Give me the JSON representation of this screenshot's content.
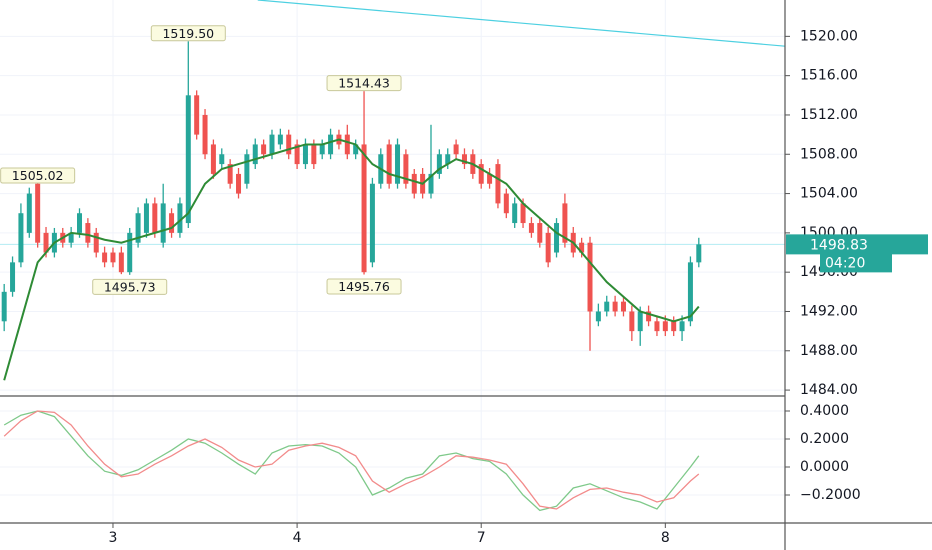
{
  "chart_data": [
    {
      "type": "candlestick",
      "colors": {
        "up": "#26a69a",
        "down": "#ef5350"
      },
      "open": [
        1491,
        1494,
        1497,
        1500,
        1505,
        1500,
        1498,
        1500,
        1499,
        1500,
        1501,
        1500,
        1498,
        1498,
        1498,
        1496,
        1499,
        1500,
        1503,
        1499,
        1502,
        1500,
        1501,
        1514,
        1512,
        1509,
        1507,
        1507,
        1506,
        1505,
        1507,
        1509,
        1508,
        1509,
        1510,
        1509,
        1507,
        1509,
        1508,
        1508,
        1510,
        1510,
        1508,
        1509,
        1497,
        1505,
        1509,
        1505,
        1508,
        1506,
        1506,
        1504,
        1506,
        1507,
        1509,
        1508,
        1508,
        1507,
        1506,
        1507,
        1504,
        1501,
        1503,
        1501,
        1501,
        1500,
        1498,
        1503,
        1500,
        1499,
        1499,
        1491,
        1492,
        1493,
        1493,
        1492,
        1490,
        1492,
        1491,
        1491,
        1491,
        1490,
        1491,
        1497
      ],
      "high": [
        1494.8,
        1497.6,
        1503,
        1504.6,
        1505.02,
        1500.6,
        1500.5,
        1500.5,
        1500.6,
        1502.5,
        1501.5,
        1500.5,
        1498.6,
        1498.5,
        1498.6,
        1500.5,
        1502.6,
        1503.5,
        1503.6,
        1505,
        1502.5,
        1503.6,
        1519.5,
        1514.5,
        1512.6,
        1509.5,
        1508.6,
        1507.5,
        1506.6,
        1508.5,
        1509.6,
        1509.5,
        1510.5,
        1510.6,
        1510.5,
        1509.5,
        1509.6,
        1509.5,
        1509.5,
        1510.6,
        1510.5,
        1511,
        1509.5,
        1514.43,
        1505.6,
        1508.6,
        1509.5,
        1509.6,
        1508.5,
        1506.5,
        1506.6,
        1511,
        1508.5,
        1508.6,
        1509.5,
        1508.6,
        1508.5,
        1507.5,
        1506.6,
        1507.5,
        1504.5,
        1503.6,
        1503.5,
        1501.6,
        1501.5,
        1500.6,
        1501.5,
        1504,
        1500.6,
        1499.5,
        1499.6,
        1492.8,
        1493.6,
        1493.6,
        1493.5,
        1492.6,
        1492.5,
        1492.6,
        1491.5,
        1491.6,
        1491.5,
        1491.6,
        1497.6,
        1499.5
      ],
      "low": [
        1490,
        1493.5,
        1496.5,
        1499.5,
        1498.5,
        1497.5,
        1497.5,
        1498.5,
        1498.5,
        1499.5,
        1498.5,
        1497.5,
        1496.5,
        1496.5,
        1495.8,
        1495.73,
        1498.5,
        1499.5,
        1499.5,
        1498.5,
        1499.5,
        1499.5,
        1500.5,
        1509.5,
        1507.5,
        1505.5,
        1506.5,
        1504.5,
        1503.5,
        1504.5,
        1506.5,
        1507.5,
        1507.5,
        1508.5,
        1507.5,
        1506.5,
        1506.5,
        1506.5,
        1507.5,
        1507.5,
        1508.5,
        1507.5,
        1507.5,
        1495.76,
        1496.5,
        1504.5,
        1504.5,
        1504.5,
        1504.5,
        1503.5,
        1503.5,
        1503.5,
        1505.5,
        1506.5,
        1507.5,
        1506.5,
        1505.5,
        1504.5,
        1504.5,
        1502.5,
        1501.5,
        1500.5,
        1500.5,
        1499.5,
        1498.5,
        1496.5,
        1497.5,
        1498.5,
        1497.5,
        1497.5,
        1488,
        1490.5,
        1491.5,
        1491.5,
        1491.5,
        1489,
        1488.5,
        1490.5,
        1489.5,
        1489.5,
        1489.5,
        1489,
        1490.5,
        1496.5
      ],
      "close": [
        1494,
        1497,
        1502,
        1504,
        1499,
        1498,
        1500,
        1499,
        1500,
        1502,
        1499,
        1498,
        1497,
        1497,
        1496,
        1500,
        1502,
        1503,
        1500,
        1503,
        1500,
        1503,
        1514,
        1510,
        1508,
        1506,
        1508,
        1505,
        1504,
        1508,
        1509,
        1508,
        1510,
        1510,
        1508,
        1507,
        1509,
        1507,
        1509,
        1510,
        1509,
        1508,
        1509,
        1496,
        1505,
        1508,
        1505,
        1509,
        1505,
        1504,
        1504,
        1506,
        1508,
        1508,
        1508,
        1507,
        1506,
        1505,
        1505,
        1503,
        1502,
        1503,
        1501,
        1500,
        1499,
        1497,
        1501,
        1499,
        1498,
        1498,
        1492,
        1492,
        1493,
        1492,
        1492,
        1490,
        1492,
        1491,
        1490,
        1490,
        1490,
        1491,
        1497,
        1498.83
      ],
      "moving_average": {
        "color": "#2e8b35",
        "x": [
          0,
          2,
          4,
          6,
          8,
          10,
          12,
          14,
          16,
          18,
          20,
          22,
          24,
          26,
          28,
          30,
          32,
          34,
          36,
          38,
          40,
          42,
          44,
          46,
          48,
          50,
          52,
          54,
          56,
          58,
          60,
          62,
          64,
          66,
          68,
          70,
          72,
          74,
          76,
          78,
          80,
          82,
          83
        ],
        "values": [
          1485,
          1491,
          1497,
          1499,
          1500,
          1499.8,
          1499.3,
          1499,
          1499.5,
          1500,
          1500.5,
          1502,
          1505,
          1506.5,
          1507,
          1507.5,
          1508,
          1508.5,
          1509,
          1509,
          1509.5,
          1509,
          1507,
          1506,
          1505.5,
          1505,
          1506.5,
          1507.5,
          1507,
          1506,
          1505,
          1503,
          1501.5,
          1500,
          1499,
          1497,
          1495,
          1493.5,
          1492,
          1491.5,
          1491,
          1491.5,
          1492.5
        ]
      },
      "trend_line": {
        "color": "#4dd0e1",
        "x": [
          30.3,
          93.3
        ],
        "values": [
          1523.7,
          1519.0
        ]
      },
      "annotations": [
        {
          "x": 4,
          "value": 1505.02,
          "label": "1505.02",
          "position": "above"
        },
        {
          "x": 15,
          "value": 1495.73,
          "label": "1495.73",
          "position": "below"
        },
        {
          "x": 22,
          "value": 1519.5,
          "label": "1519.50",
          "position": "above"
        },
        {
          "x": 43,
          "value": 1514.43,
          "label": "1514.43",
          "position": "above"
        },
        {
          "x": 43,
          "value": 1495.76,
          "label": "1495.76",
          "position": "below"
        }
      ],
      "last_price": {
        "value": 1498.83,
        "label": "1498.83",
        "color": "#26a69a"
      },
      "countdown": "04:20",
      "xlim": [
        -0.5,
        93.3
      ],
      "ylim": [
        1483.5,
        1523.7
      ],
      "yticks": [
        {
          "value": 1484,
          "label": "1484.00"
        },
        {
          "value": 1488,
          "label": "1488.00"
        },
        {
          "value": 1492,
          "label": "1492.00"
        },
        {
          "value": 1496,
          "label": "1496.00"
        },
        {
          "value": 1500,
          "label": "1500.00"
        },
        {
          "value": 1504,
          "label": "1504.00"
        },
        {
          "value": 1508,
          "label": "1508.00"
        },
        {
          "value": 1512,
          "label": "1512.00"
        },
        {
          "value": 1516,
          "label": "1516.00"
        },
        {
          "value": 1520,
          "label": "1520.00"
        }
      ]
    },
    {
      "type": "line",
      "x": [
        0,
        2,
        4,
        6,
        8,
        10,
        12,
        14,
        16,
        18,
        20,
        22,
        24,
        26,
        28,
        30,
        32,
        34,
        36,
        38,
        40,
        42,
        44,
        46,
        48,
        50,
        52,
        54,
        56,
        58,
        60,
        62,
        64,
        66,
        68,
        70,
        72,
        74,
        76,
        78,
        80,
        82,
        83
      ],
      "series": [
        {
          "color": "#7fc98a",
          "values": [
            0.3,
            0.37,
            0.4,
            0.36,
            0.22,
            0.08,
            -0.03,
            -0.06,
            -0.02,
            0.05,
            0.12,
            0.2,
            0.17,
            0.1,
            0.02,
            -0.05,
            0.1,
            0.15,
            0.16,
            0.15,
            0.1,
            0.0,
            -0.2,
            -0.15,
            -0.08,
            -0.05,
            0.08,
            0.1,
            0.06,
            0.04,
            -0.05,
            -0.2,
            -0.31,
            -0.28,
            -0.15,
            -0.12,
            -0.17,
            -0.22,
            -0.25,
            -0.3,
            -0.15,
            0.0,
            0.08
          ]
        },
        {
          "color": "#f28b8b",
          "values": [
            0.22,
            0.33,
            0.4,
            0.39,
            0.3,
            0.15,
            0.02,
            -0.07,
            -0.05,
            0.02,
            0.08,
            0.15,
            0.2,
            0.14,
            0.05,
            0.0,
            0.02,
            0.12,
            0.15,
            0.17,
            0.14,
            0.08,
            -0.1,
            -0.18,
            -0.12,
            -0.07,
            0.0,
            0.08,
            0.07,
            0.05,
            0.02,
            -0.12,
            -0.28,
            -0.3,
            -0.22,
            -0.16,
            -0.15,
            -0.18,
            -0.2,
            -0.25,
            -0.22,
            -0.1,
            -0.05
          ]
        }
      ],
      "xlim": [
        -0.5,
        93.3
      ],
      "ylim": [
        -0.4,
        0.5
      ],
      "yticks": [
        {
          "value": -0.2,
          "label": "−0.2000"
        },
        {
          "value": 0,
          "label": "0.0000"
        },
        {
          "value": 0.2,
          "label": "0.2000"
        },
        {
          "value": 0.4,
          "label": "0.4000"
        }
      ],
      "xticks": [
        {
          "value": 13,
          "label": "3"
        },
        {
          "value": 35,
          "label": "4"
        },
        {
          "value": 57,
          "label": "7"
        },
        {
          "value": 79,
          "label": "8"
        }
      ]
    }
  ]
}
